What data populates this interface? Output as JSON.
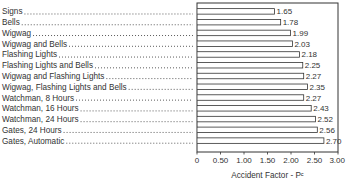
{
  "chart_data": {
    "type": "bar",
    "orientation": "horizontal",
    "categories": [
      "Signs",
      "Bells",
      "Wigwag",
      "Wigwag and Bells",
      "Flashing Lights",
      "Flashing Lights and Bells",
      "Wigwag and Flashing Lights",
      "Wigwag, Flashing Lights and Bells",
      "Watchman, 8 Hours",
      "Watchman, 16 Hours",
      "Watchman, 24 Hours",
      "Gates, 24 Hours",
      "Gates, Automatic"
    ],
    "values": [
      1.65,
      1.78,
      1.99,
      2.03,
      2.18,
      2.25,
      2.27,
      2.35,
      2.27,
      2.43,
      2.52,
      2.56,
      2.7
    ],
    "value_labels": [
      "1.65",
      "1.78",
      "1.99",
      "2.03",
      "2.18",
      "2.25",
      "2.27",
      "2.35",
      "2.27",
      "2.43",
      "2.52",
      "2.56",
      "2.70"
    ],
    "data_labels": true,
    "color": "#ffffff",
    "x_label": "Accident Factor - Pᶜ",
    "xlim": [
      0,
      3
    ],
    "xticks": [
      0,
      {
        "value": 0.5,
        "label": "0.50"
      },
      {
        "value": 1,
        "label": "1.00"
      },
      {
        "value": 1.5,
        "label": "1.50"
      },
      {
        "value": 2,
        "label": "2.00"
      },
      {
        "value": 2.5,
        "label": "2.50"
      },
      {
        "value": 3,
        "label": "3.00"
      }
    ],
    "grid": false
  }
}
